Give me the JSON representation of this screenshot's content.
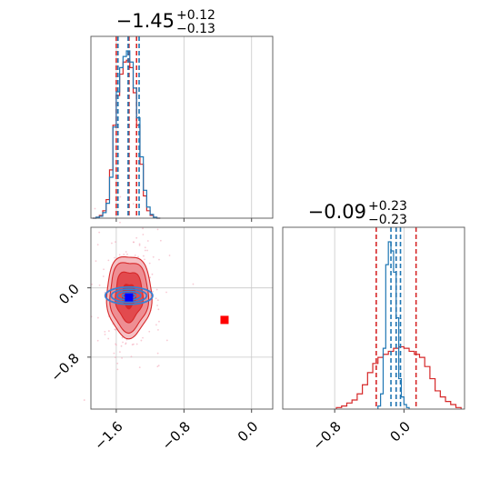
{
  "chart_data": [
    {
      "type": "histogram",
      "panel": "top-left",
      "title": {
        "main": "−1.45",
        "sup": "+0.12",
        "sub": "−0.13"
      },
      "xlim": [
        -1.9,
        0.25
      ],
      "xticks": [
        -1.6,
        -0.8,
        0.0
      ],
      "grid": true,
      "series": [
        {
          "name": "red",
          "color": "#d62728",
          "bins": [
            -1.88,
            -1.84,
            -1.8,
            -1.76,
            -1.72,
            -1.68,
            -1.64,
            -1.6,
            -1.56,
            -1.52,
            -1.48,
            -1.44,
            -1.4,
            -1.36,
            -1.32,
            -1.28,
            -1.24,
            -1.2,
            -1.16,
            -1.12,
            -1.08
          ],
          "counts": [
            0,
            1,
            3,
            8,
            20,
            52,
            100,
            132,
            155,
            168,
            170,
            162,
            135,
            100,
            58,
            24,
            8,
            3,
            1,
            0
          ],
          "quantiles": [
            -1.6,
            -1.45,
            -1.36
          ]
        },
        {
          "name": "blue",
          "color": "#1f77b4",
          "bins": [
            -1.88,
            -1.84,
            -1.8,
            -1.76,
            -1.72,
            -1.68,
            -1.64,
            -1.6,
            -1.56,
            -1.52,
            -1.48,
            -1.44,
            -1.4,
            -1.36,
            -1.32,
            -1.28,
            -1.24,
            -1.2,
            -1.16,
            -1.12,
            -1.08
          ],
          "counts": [
            0,
            1,
            2,
            6,
            16,
            44,
            98,
            136,
            162,
            174,
            180,
            168,
            140,
            108,
            66,
            30,
            12,
            4,
            1,
            0
          ],
          "quantiles": [
            -1.58,
            -1.46,
            -1.33
          ]
        }
      ]
    },
    {
      "type": "scatter-contour",
      "panel": "bottom-left",
      "xlim": [
        -1.9,
        0.25
      ],
      "ylim": [
        -1.4,
        0.7
      ],
      "xticks": [
        -1.6,
        -0.8,
        0.0
      ],
      "yticks": [
        0.0,
        -0.8
      ],
      "xticklabels": [
        "−1.6",
        "−0.8",
        "0.0"
      ],
      "yticklabels": [
        "0.0",
        "−0.8"
      ],
      "grid": true,
      "red_center": [
        -1.45,
        -0.09
      ],
      "red_sigma": [
        0.13,
        0.23
      ],
      "blue_center": [
        -1.45,
        -0.09
      ],
      "blue_sigma": [
        0.14,
        0.05
      ],
      "markers": [
        {
          "name": "red-square",
          "x": -0.32,
          "y": -0.37,
          "color": "#ff0000"
        },
        {
          "name": "blue-square",
          "x": -1.45,
          "y": -0.11,
          "color": "#0000ff"
        }
      ]
    },
    {
      "type": "histogram",
      "panel": "bottom-right",
      "title": {
        "main": "−0.09",
        "sup": "+0.23",
        "sub": "−0.23"
      },
      "xlim": [
        -1.4,
        0.7
      ],
      "xticks": [
        -0.8,
        0.0
      ],
      "xticklabels": [
        "−0.8",
        "0.0"
      ],
      "grid": true,
      "series": [
        {
          "name": "red",
          "color": "#d62728",
          "bins": [
            -0.78,
            -0.72,
            -0.66,
            -0.6,
            -0.54,
            -0.48,
            -0.42,
            -0.36,
            -0.3,
            -0.24,
            -0.18,
            -0.12,
            -0.06,
            0.0,
            0.06,
            0.12,
            0.18,
            0.24,
            0.3,
            0.36,
            0.42,
            0.48,
            0.54,
            0.6,
            0.66
          ],
          "counts": [
            1,
            2,
            4,
            6,
            10,
            16,
            24,
            30,
            34,
            36,
            38,
            40,
            41,
            40,
            38,
            36,
            34,
            28,
            20,
            12,
            8,
            5,
            3,
            1
          ],
          "quantiles": [
            -0.32,
            -0.09,
            0.14
          ]
        },
        {
          "name": "blue",
          "color": "#1f77b4",
          "bins": [
            -0.3,
            -0.27,
            -0.24,
            -0.21,
            -0.18,
            -0.15,
            -0.12,
            -0.09,
            -0.06,
            -0.03,
            0.0,
            0.03,
            0.06
          ],
          "counts": [
            2,
            10,
            40,
            95,
            110,
            104,
            90,
            60,
            20,
            8,
            3,
            1
          ],
          "quantiles": [
            -0.15,
            -0.09,
            -0.04
          ]
        }
      ]
    }
  ]
}
